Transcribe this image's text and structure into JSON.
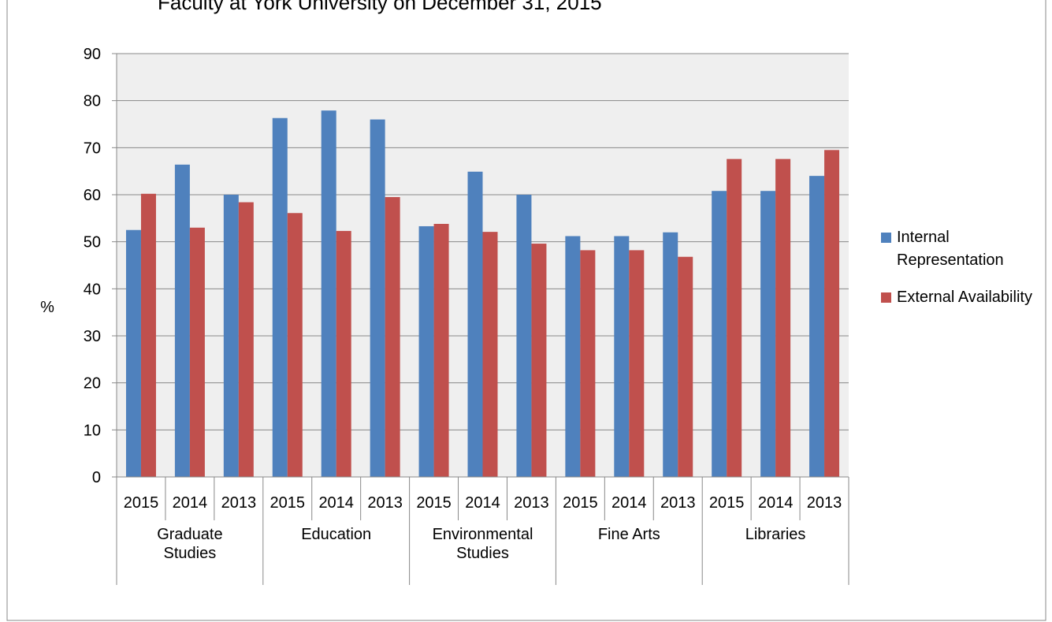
{
  "chart_data": {
    "type": "bar",
    "title": "Faculty at York University on December 31, 2015",
    "y_label": "%",
    "categories": [
      "2015",
      "2014",
      "2013",
      "2015",
      "2014",
      "2013",
      "2015",
      "2014",
      "2013",
      "2015",
      "2014",
      "2013",
      "2015",
      "2014",
      "2013"
    ],
    "groups": [
      "Graduate Studies",
      "Education",
      "Environmental Studies",
      "Fine Arts",
      "Libraries"
    ],
    "series": [
      {
        "name": "Internal Representation",
        "color": "#4f81bd",
        "values": [
          52.5,
          66.4,
          60,
          76.3,
          77.9,
          76,
          53.3,
          64.9,
          60,
          51.2,
          51.2,
          52,
          60.8,
          60.8,
          64
        ]
      },
      {
        "name": "External Availability",
        "color": "#c0504d",
        "values": [
          60.2,
          53,
          58.4,
          56.1,
          52.3,
          59.5,
          53.8,
          52.1,
          49.6,
          48.2,
          48.2,
          46.8,
          67.6,
          67.6,
          69.5
        ]
      }
    ],
    "ylim": [
      0,
      90
    ],
    "yticks": [
      0,
      10,
      20,
      30,
      40,
      50,
      60,
      70,
      80,
      90
    ],
    "grid": true,
    "legend": "right"
  }
}
